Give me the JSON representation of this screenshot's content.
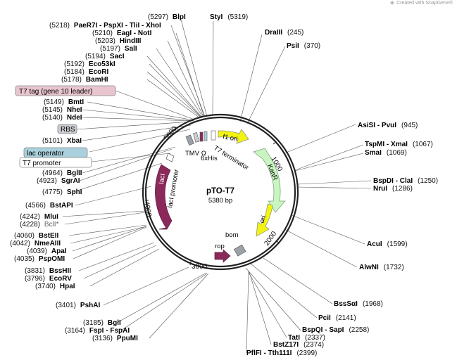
{
  "credit": "Created with SnapGene®",
  "plasmid": {
    "name": "pTO-T7",
    "size_label": "5380 bp"
  },
  "ticks": [
    {
      "label": "1000"
    },
    {
      "label": "2000"
    },
    {
      "label": "3000"
    },
    {
      "label": "4000"
    },
    {
      "label": "5000"
    }
  ],
  "features": {
    "f1_ori": "f1 ori",
    "kanr": "KanR",
    "ori": "ori",
    "rop": "rop",
    "bom": "bom",
    "laci": "lacI",
    "laci_promoter": "lacI promoter",
    "tmv": "TMV Ω",
    "his": "6xHis",
    "t7_terminator": "T7 terminator"
  },
  "left_boxes": {
    "t7_tag": "T7 tag (gene 10 leader)",
    "rbs": "RBS",
    "lac_operator": "lac operator",
    "t7_promoter": "T7 promoter"
  },
  "sites": [
    {
      "pos": "(5297)",
      "name": "BlpI"
    },
    {
      "pos": "(5218)",
      "name": "PaeR7I - PspXI - TliI - XhoI"
    },
    {
      "pos": "(5210)",
      "name": "EagI - NotI"
    },
    {
      "pos": "(5203)",
      "name": "HindIII"
    },
    {
      "pos": "(5197)",
      "name": "SalI"
    },
    {
      "pos": "(5194)",
      "name": "SacI"
    },
    {
      "pos": "(5192)",
      "name": "Eco53kI"
    },
    {
      "pos": "(5184)",
      "name": "EcoRI"
    },
    {
      "pos": "(5178)",
      "name": "BamHI"
    },
    {
      "pos": "(5149)",
      "name": "BmtI"
    },
    {
      "pos": "(5145)",
      "name": "NheI"
    },
    {
      "pos": "(5140)",
      "name": "NdeI"
    },
    {
      "pos": "(5101)",
      "name": "XbaI"
    },
    {
      "pos": "(4964)",
      "name": "BglII"
    },
    {
      "pos": "(4923)",
      "name": "SgrAI"
    },
    {
      "pos": "(4775)",
      "name": "SphI"
    },
    {
      "pos": "(4566)",
      "name": "BstAPI"
    },
    {
      "pos": "(4242)",
      "name": "MluI"
    },
    {
      "pos": "(4228)",
      "name": "BclI*"
    },
    {
      "pos": "(4060)",
      "name": "BstEII"
    },
    {
      "pos": "(4042)",
      "name": "NmeAIII"
    },
    {
      "pos": "(4039)",
      "name": "ApaI"
    },
    {
      "pos": "(4035)",
      "name": "PspOMI"
    },
    {
      "pos": "(3831)",
      "name": "BssHII"
    },
    {
      "pos": "(3796)",
      "name": "EcoRV"
    },
    {
      "pos": "(3740)",
      "name": "HpaI"
    },
    {
      "pos": "(3401)",
      "name": "PshAI"
    },
    {
      "pos": "(3185)",
      "name": "BglI"
    },
    {
      "pos": "(3164)",
      "name": "FspI - FspAI"
    },
    {
      "pos": "(3136)",
      "name": "PpuMI"
    },
    {
      "pos": "(5319)",
      "name": "StyI"
    },
    {
      "pos": "(245)",
      "name": "DraIII"
    },
    {
      "pos": "(370)",
      "name": "PsiI"
    },
    {
      "pos": "(945)",
      "name": "AsiSI - PvuI"
    },
    {
      "pos": "(1067)",
      "name": "TspMI - XmaI"
    },
    {
      "pos": "(1069)",
      "name": "SmaI"
    },
    {
      "pos": "(1250)",
      "name": "BspDI - ClaI"
    },
    {
      "pos": "(1286)",
      "name": "NruI"
    },
    {
      "pos": "(1599)",
      "name": "AcuI"
    },
    {
      "pos": "(1732)",
      "name": "AlwNI"
    },
    {
      "pos": "(1968)",
      "name": "BssSαI"
    },
    {
      "pos": "(2141)",
      "name": "PciI"
    },
    {
      "pos": "(2258)",
      "name": "BspQI - SapI"
    },
    {
      "pos": "(2337)",
      "name": "TatI"
    },
    {
      "pos": "(2374)",
      "name": "BstZ17I"
    },
    {
      "pos": "(2399)",
      "name": "PflFI - Tth111I"
    }
  ],
  "colors": {
    "laci": "#8b2a5a",
    "kanr": "#c8f5c0",
    "ori": "#f3f312",
    "f1_ori": "#f3f312",
    "rop": "#8b2a5a",
    "bom": "#9aa2a8",
    "t7_tag_box": "#e8c5cf",
    "rbs_box": "#c9ccd1",
    "lac_operator_box": "#a9d0dc",
    "line": "#333333"
  }
}
